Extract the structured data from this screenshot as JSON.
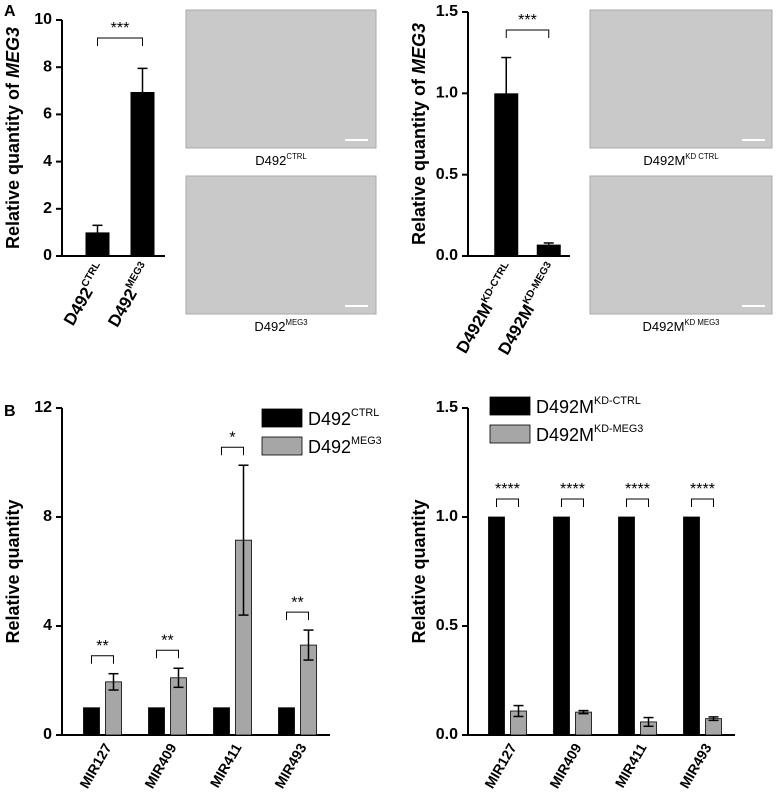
{
  "panel_labels": [
    "A",
    "B"
  ],
  "images": [
    {
      "caption": "D492",
      "caption_sup": "CTRL"
    },
    {
      "caption": "D492",
      "caption_sup": "MEG3"
    },
    {
      "caption": "D492M",
      "caption_sup": "KD CTRL"
    },
    {
      "caption": "D492M",
      "caption_sup": "KD MEG3"
    }
  ],
  "chart_data": [
    {
      "type": "bar",
      "y_label": "Relative quantity of ",
      "y_label_italic": "MEG3",
      "categories": [
        "D492",
        "D492"
      ],
      "category_superscripts": [
        "CTRL",
        "MEG3"
      ],
      "values": [
        1,
        6.95
      ],
      "errors": [
        0.3,
        1.0
      ],
      "color": "#000000",
      "significance": "***",
      "ylim": [
        0,
        10
      ],
      "yticks": [
        0,
        2,
        4,
        6,
        8,
        10
      ]
    },
    {
      "type": "bar",
      "y_label": "Relative quantity of ",
      "y_label_italic": "MEG3",
      "categories": [
        "D492M",
        "D492M"
      ],
      "category_superscripts": [
        "KD-CTRL",
        "KD-MEG3"
      ],
      "values": [
        1.0,
        0.07
      ],
      "errors": [
        0.22,
        0.01
      ],
      "color": "#000000",
      "significance": "***",
      "ylim": [
        0,
        1.5
      ],
      "yticks": [
        {
          "value": 0,
          "label": "0.0"
        },
        {
          "value": 0.5,
          "label": "0.5"
        },
        {
          "value": 1,
          "label": "1.0"
        },
        {
          "value": 1.5,
          "label": "1.5"
        }
      ]
    },
    {
      "type": "grouped-bar",
      "y_label": "Relative quantity",
      "categories": [
        "MIR127",
        "MIR409",
        "MIR411",
        "MIR493"
      ],
      "series": [
        {
          "name": "D492",
          "name_sup": "CTRL",
          "color": "#000000",
          "values": [
            1,
            1,
            1,
            1
          ]
        },
        {
          "name": "D492",
          "name_sup": "MEG3",
          "color": "#a6a6a6",
          "values": [
            1.95,
            2.1,
            7.15,
            3.3
          ],
          "errors": [
            0.3,
            0.35,
            2.75,
            0.55
          ]
        }
      ],
      "significance": [
        "**",
        "**",
        "*",
        "**"
      ],
      "ylim": [
        0,
        12
      ],
      "yticks": [
        0,
        4,
        8,
        12
      ],
      "legend": "upper right"
    },
    {
      "type": "grouped-bar",
      "y_label": "Relative quantity",
      "categories": [
        "MIR127",
        "MIR409",
        "MIR411",
        "MIR493"
      ],
      "series": [
        {
          "name": "D492M",
          "name_sup": "KD-CTRL",
          "color": "#000000",
          "values": [
            1,
            1,
            1,
            1
          ]
        },
        {
          "name": "D492M",
          "name_sup": "KD-MEG3",
          "color": "#a6a6a6",
          "values": [
            0.11,
            0.105,
            0.06,
            0.075
          ],
          "errors": [
            0.025,
            0.007,
            0.02,
            0.008
          ]
        }
      ],
      "significance": [
        "****",
        "****",
        "****",
        "****"
      ],
      "ylim": [
        0,
        1.5
      ],
      "yticks": [
        {
          "value": 0,
          "label": "0.0"
        },
        {
          "value": 0.5,
          "label": "0.5"
        },
        {
          "value": 1,
          "label": "1.0"
        },
        {
          "value": 1.5,
          "label": "1.5"
        }
      ],
      "legend": "upper right"
    }
  ]
}
